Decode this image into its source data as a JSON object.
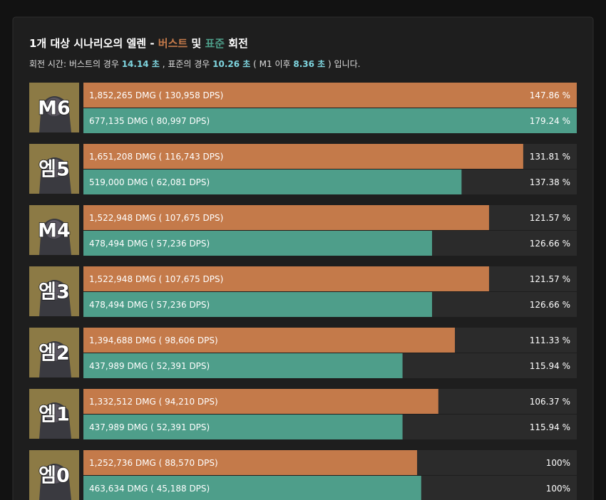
{
  "chart_data": {
    "type": "bar",
    "title_parts": [
      "1개 대상 시나리오의 엘렌 - ",
      "버스트",
      " 및 ",
      "표준",
      " 회전"
    ],
    "subtitle_parts": [
      "회전 시간: 버스트의 경우 ",
      "14.14 초",
      " , 표준의 경우 ",
      "10.26 초",
      " ( M1 이후 ",
      "8.36 초",
      " ) 입니다."
    ],
    "categories": [
      "M6",
      "엠5",
      "M4",
      "엠3",
      "엠2",
      "엠1",
      "엠0"
    ],
    "series": [
      {
        "name": "버스트",
        "color": "#c47a4a",
        "xlim": [
          0,
          1852265
        ],
        "values": [
          1852265,
          1651208,
          1522948,
          1522948,
          1394688,
          1332512,
          1252736
        ],
        "value_labels": [
          "1,852,265 DMG ( 130,958 DPS)",
          "1,651,208 DMG ( 116,743 DPS)",
          "1,522,948 DMG ( 107,675 DPS)",
          "1,522,948 DMG ( 107,675 DPS)",
          "1,394,688 DMG ( 98,606 DPS)",
          "1,332,512 DMG ( 94,210 DPS)",
          "1,252,736 DMG ( 88,570 DPS)"
        ],
        "percent_labels": [
          "147.86 %",
          "131.81 %",
          "121.57 %",
          "121.57 %",
          "111.33 %",
          "106.37 %",
          "100%"
        ]
      },
      {
        "name": "표준",
        "color": "#4e9e8a",
        "xlim": [
          0,
          677135
        ],
        "values": [
          677135,
          519000,
          478494,
          478494,
          437989,
          437989,
          463634
        ],
        "value_labels": [
          "677,135 DMG ( 80,997 DPS)",
          "519,000 DMG ( 62,081 DPS)",
          "478,494 DMG ( 57,236 DPS)",
          "478,494 DMG ( 57,236 DPS)",
          "437,989 DMG ( 52,391 DPS)",
          "437,989 DMG ( 52,391 DPS)",
          "463,634 DMG ( 45,188 DPS)"
        ],
        "percent_labels": [
          "179.24 %",
          "137.38 %",
          "126.66 %",
          "126.66 %",
          "115.94 %",
          "115.94 %",
          "100%"
        ]
      }
    ]
  }
}
